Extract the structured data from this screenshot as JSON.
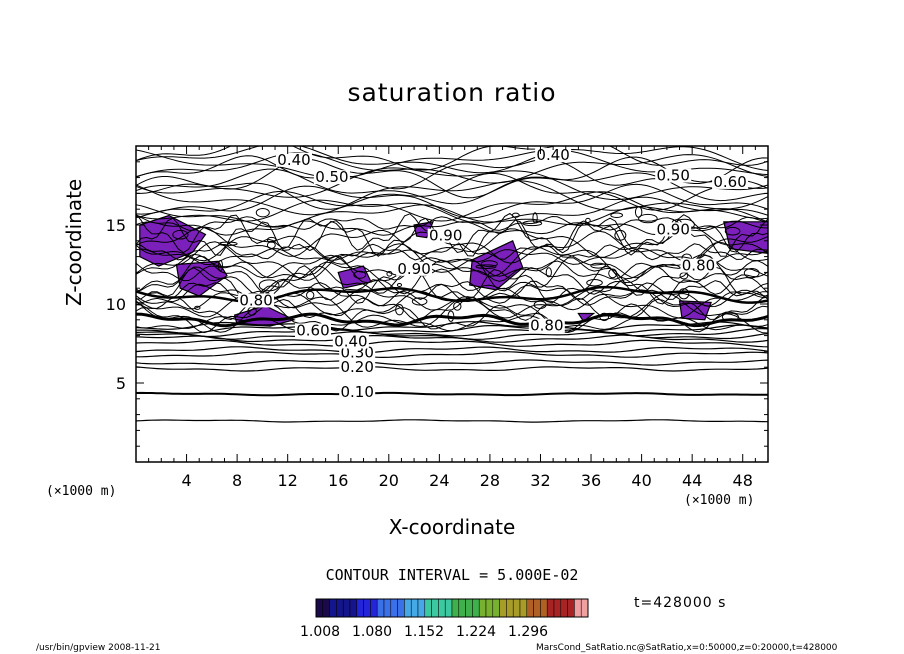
{
  "chart_data": {
    "type": "contour",
    "title": "saturation ratio",
    "xlabel": "X-coordinate",
    "ylabel": "Z-coordinate",
    "x_unit": "(×1000 m)",
    "y_unit": "(×1000 m)",
    "xlim": [
      0,
      50
    ],
    "ylim": [
      0,
      20
    ],
    "x_ticks": [
      4,
      8,
      12,
      16,
      20,
      24,
      28,
      32,
      36,
      40,
      44,
      48
    ],
    "y_ticks": [
      5,
      10,
      15
    ],
    "contour_interval_text": "CONTOUR INTERVAL = 5.000E-02",
    "contour_labels": [
      {
        "text": "0.10",
        "x": 17.5,
        "y": 4.3
      },
      {
        "text": "0.20",
        "x": 17.5,
        "y": 5.9
      },
      {
        "text": "0.30",
        "x": 17.5,
        "y": 6.8
      },
      {
        "text": "0.40",
        "x": 17.0,
        "y": 7.5
      },
      {
        "text": "0.60",
        "x": 14.0,
        "y": 8.2
      },
      {
        "text": "0.80",
        "x": 32.5,
        "y": 8.5
      },
      {
        "text": "0.40",
        "x": 12.5,
        "y": 19.0
      },
      {
        "text": "0.40",
        "x": 33.0,
        "y": 19.3
      },
      {
        "text": "0.50",
        "x": 42.5,
        "y": 18.0
      },
      {
        "text": "0.60",
        "x": 47.0,
        "y": 17.6
      },
      {
        "text": "0.50",
        "x": 15.5,
        "y": 17.9
      },
      {
        "text": "0.90",
        "x": 42.5,
        "y": 14.6
      },
      {
        "text": "0.80",
        "x": 44.5,
        "y": 12.3
      },
      {
        "text": "0.80",
        "x": 9.5,
        "y": 10.1
      },
      {
        "text": "0.90",
        "x": 24.5,
        "y": 14.2
      },
      {
        "text": "0.90",
        "x": 22.0,
        "y": 12.1
      }
    ],
    "shaded_threshold": 1.0,
    "shaded_regions": [
      {
        "x": [
          0.3,
          2.6,
          5.5,
          4.5,
          1.8,
          0.3
        ],
        "z": [
          15.0,
          15.6,
          14.4,
          13.3,
          12.4,
          13.0
        ]
      },
      {
        "x": [
          3.2,
          6.5,
          7.2,
          5.0,
          3.5
        ],
        "z": [
          12.5,
          12.7,
          11.8,
          10.5,
          11.0
        ]
      },
      {
        "x": [
          7.8,
          10.2,
          12.5,
          10.6,
          8.0
        ],
        "z": [
          9.3,
          9.9,
          9.0,
          8.6,
          8.7
        ]
      },
      {
        "x": [
          16.0,
          18.0,
          18.6,
          16.4
        ],
        "z": [
          12.0,
          12.4,
          11.4,
          11.0
        ]
      },
      {
        "x": [
          22.0,
          23.5,
          23.0,
          22.2
        ],
        "z": [
          15.0,
          15.2,
          14.2,
          14.3
        ]
      },
      {
        "x": [
          26.6,
          29.8,
          30.6,
          28.5,
          26.4
        ],
        "z": [
          12.8,
          14.0,
          12.3,
          10.9,
          11.2
        ]
      },
      {
        "x": [
          35.0,
          36.2,
          35.4
        ],
        "z": [
          9.4,
          9.4,
          8.9
        ]
      },
      {
        "x": [
          43.0,
          45.5,
          45.0,
          43.2
        ],
        "z": [
          10.2,
          10.1,
          9.0,
          9.1
        ]
      },
      {
        "x": [
          46.5,
          50.0,
          50.0,
          47.0
        ],
        "z": [
          15.2,
          15.2,
          13.2,
          13.5
        ]
      }
    ],
    "colorbar": {
      "ticks": [
        "1.008",
        "1.080",
        "1.152",
        "1.224",
        "1.296"
      ],
      "colors": [
        "#1a0a4a",
        "#14148c",
        "#2424d8",
        "#3a70e8",
        "#46a8e6",
        "#3cc8a0",
        "#3fb04c",
        "#78b030",
        "#a89c28",
        "#b06024",
        "#a82424",
        "#f0a0a0"
      ]
    },
    "shade_color": "#7c20bc",
    "time_label": "t=428000 s"
  },
  "footer": {
    "left": "/usr/bin/gpview   2008-11-21",
    "right": "MarsCond_SatRatio.nc@SatRatio,x=0:50000,z=0:20000,t=428000"
  }
}
